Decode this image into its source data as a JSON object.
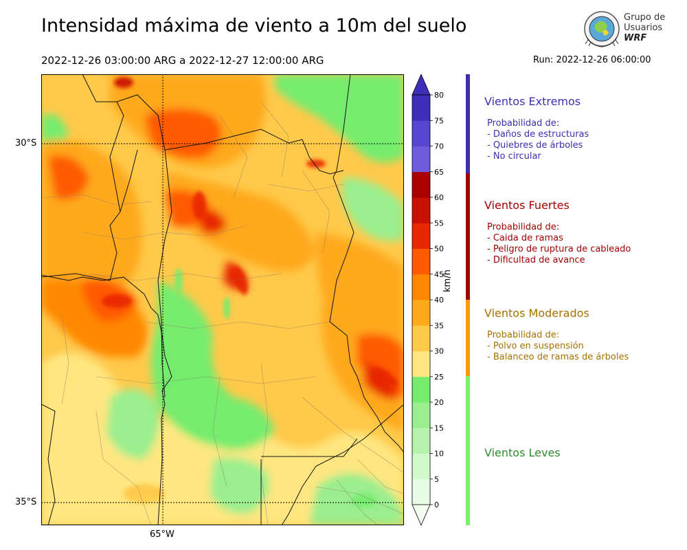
{
  "header": {
    "title": "Intensidad máxima de viento a 10m del suelo",
    "period": "2022-12-26 03:00:00 ARG  a  2022-12-27 12:00:00 ARG",
    "run": "Run: 2022-12-26 06:00:00"
  },
  "logo": {
    "line1": "Grupo de",
    "line2": "Usuarios",
    "line3": "WRF"
  },
  "map": {
    "lat_labels": [
      "30°S",
      "35°S"
    ],
    "lon_labels": [
      "65°W"
    ]
  },
  "colorbar": {
    "unit": "km/h",
    "ticks": [
      "0",
      "5",
      "10",
      "15",
      "20",
      "25",
      "30",
      "35",
      "40",
      "45",
      "50",
      "55",
      "60",
      "65",
      "70",
      "75",
      "80"
    ],
    "colors": [
      "#e8fde6",
      "#d2f9cc",
      "#b7f3ad",
      "#9aee8e",
      "#76ec6e",
      "#ffe680",
      "#ffc94a",
      "#ffa91c",
      "#ff8800",
      "#ff5a00",
      "#e82800",
      "#c81000",
      "#aa0000",
      "#6e5cdf",
      "#5545d0",
      "#3f2fb8"
    ],
    "over_color": "#3f2fb8",
    "under_color": "#f2fff0"
  },
  "categories": [
    {
      "title": "Vientos Extremos",
      "color": "#3c2fb0",
      "heading": "Probabilidad de:",
      "items": [
        "- Daños de estructuras",
        "- Quiebres de árboles",
        "- No circular"
      ]
    },
    {
      "title": "Vientos Fuertes",
      "color": "#a00000",
      "heading": "Probabilidad de:",
      "items": [
        "- Caida de ramas",
        "- Peligro de ruptura de cableado",
        "- Dificultad de avance"
      ]
    },
    {
      "title": "Vientos Moderados",
      "color": "#a87000",
      "heading": "Probabilidad de:",
      "items": [
        "- Polvo en suspensión",
        "- Balanceo de ramas de árboles"
      ]
    },
    {
      "title": "Vientos Leves",
      "color": "#2e8b2e",
      "heading": "",
      "items": []
    }
  ],
  "category_bar_colors": [
    "#3c2fb0",
    "#a00000",
    "#ff9900",
    "#7ef06e"
  ]
}
